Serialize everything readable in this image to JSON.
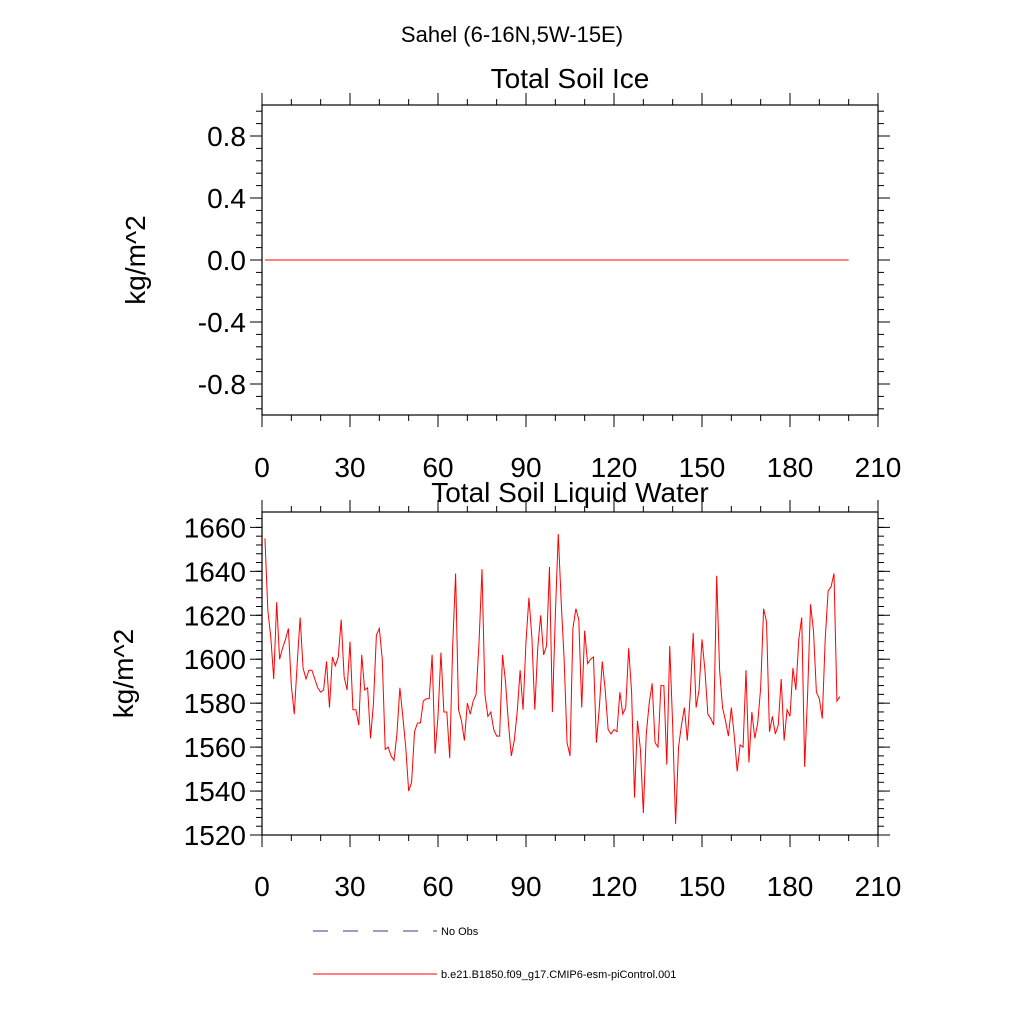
{
  "page": {
    "suptitle": "Sahel (6-16N,5W-15E)"
  },
  "legend": {
    "entries": [
      {
        "label": "No Obs",
        "color": "#3a3a8c",
        "style": "dashed"
      },
      {
        "label": "b.e21.B1850.f09_g17.CMIP6-esm-piControl.001",
        "color": "#ff0000",
        "style": "solid"
      }
    ]
  },
  "chart_data": [
    {
      "type": "line",
      "title": "Total Soil Ice",
      "xlabel": "",
      "ylabel": "kg/m^2",
      "xlim": [
        0,
        210
      ],
      "ylim": [
        -1.0,
        1.0
      ],
      "xticks": [
        "0",
        "30",
        "60",
        "90",
        "120",
        "150",
        "180",
        "210"
      ],
      "yticks": [
        "-0.8",
        "-0.4",
        "0.0",
        "0.4",
        "0.8"
      ],
      "series": [
        {
          "name": "b.e21.B1850.f09_g17.CMIP6-esm-piControl.001",
          "color": "#ff0000",
          "x": [
            1,
            200
          ],
          "values": [
            0.0,
            0.0
          ]
        }
      ]
    },
    {
      "type": "line",
      "title": "Total Soil Liquid Water",
      "xlabel": "",
      "ylabel": "kg/m^2",
      "xlim": [
        0,
        210
      ],
      "ylim": [
        1520,
        1667
      ],
      "xticks": [
        "0",
        "30",
        "60",
        "90",
        "120",
        "150",
        "180",
        "210"
      ],
      "yticks": [
        "1520",
        "1540",
        "1560",
        "1580",
        "1600",
        "1620",
        "1640",
        "1660"
      ],
      "series": [
        {
          "name": "b.e21.B1850.f09_g17.CMIP6-esm-piControl.001",
          "color": "#ff0000",
          "x_start": 1,
          "values": [
            1655,
            1622,
            1610,
            1591,
            1626,
            1600,
            1605,
            1609,
            1614,
            1588,
            1575,
            1598,
            1619,
            1596,
            1591,
            1595,
            1595,
            1591,
            1587,
            1585,
            1586,
            1599,
            1578,
            1601,
            1597,
            1601,
            1618,
            1592,
            1586,
            1608,
            1577,
            1577,
            1570,
            1602,
            1586,
            1587,
            1564,
            1580,
            1611,
            1614,
            1600,
            1559,
            1560,
            1556,
            1554,
            1566,
            1587,
            1574,
            1560,
            1540,
            1544,
            1567,
            1571,
            1571,
            1581,
            1582,
            1582,
            1602,
            1557,
            1574,
            1603,
            1576,
            1576,
            1555,
            1606,
            1639,
            1577,
            1572,
            1563,
            1580,
            1575,
            1581,
            1584,
            1608,
            1641,
            1584,
            1574,
            1576,
            1568,
            1565,
            1565,
            1602,
            1590,
            1571,
            1556,
            1563,
            1576,
            1595,
            1577,
            1608,
            1628,
            1610,
            1577,
            1605,
            1620,
            1602,
            1606,
            1642,
            1576,
            1620,
            1657,
            1626,
            1600,
            1562,
            1556,
            1614,
            1623,
            1618,
            1578,
            1613,
            1598,
            1600,
            1601,
            1562,
            1578,
            1599,
            1586,
            1568,
            1566,
            1568,
            1567,
            1585,
            1575,
            1578,
            1605,
            1585,
            1537,
            1572,
            1559,
            1530,
            1566,
            1580,
            1589,
            1562,
            1560,
            1588,
            1588,
            1552,
            1606,
            1570,
            1525,
            1560,
            1570,
            1578,
            1563,
            1584,
            1612,
            1578,
            1586,
            1609,
            1595,
            1575,
            1573,
            1570,
            1638,
            1595,
            1578,
            1572,
            1565,
            1578,
            1565,
            1549,
            1561,
            1560,
            1595,
            1553,
            1576,
            1564,
            1571,
            1587,
            1623,
            1617,
            1567,
            1574,
            1566,
            1570,
            1591,
            1563,
            1577,
            1574,
            1596,
            1586,
            1609,
            1619,
            1551,
            1584,
            1625,
            1613,
            1585,
            1582,
            1573,
            1609,
            1631,
            1633,
            1639,
            1581,
            1583
          ]
        }
      ]
    }
  ]
}
